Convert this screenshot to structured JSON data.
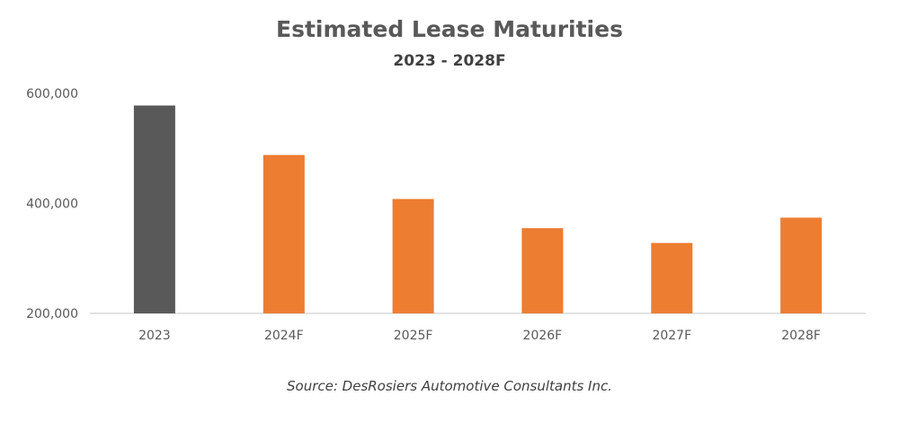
{
  "chart_data": {
    "type": "bar",
    "title": "Estimated Lease Maturities",
    "subtitle": "2023 - 2028F",
    "categories": [
      "2023",
      "2024F",
      "2025F",
      "2026F",
      "2027F",
      "2028F"
    ],
    "values": [
      578000,
      488000,
      408000,
      355000,
      328000,
      374000
    ],
    "bar_colors": [
      "#595959",
      "#ED7D31",
      "#ED7D31",
      "#ED7D31",
      "#ED7D31",
      "#ED7D31"
    ],
    "ylim": [
      200000,
      600000
    ],
    "yticks": [
      "200,000",
      "400,000",
      "600,000"
    ],
    "ytick_values": [
      200000,
      400000,
      600000
    ],
    "xlabel": "",
    "ylabel": "",
    "grid": false,
    "source": "Source: DesRosiers Automotive Consultants Inc."
  }
}
